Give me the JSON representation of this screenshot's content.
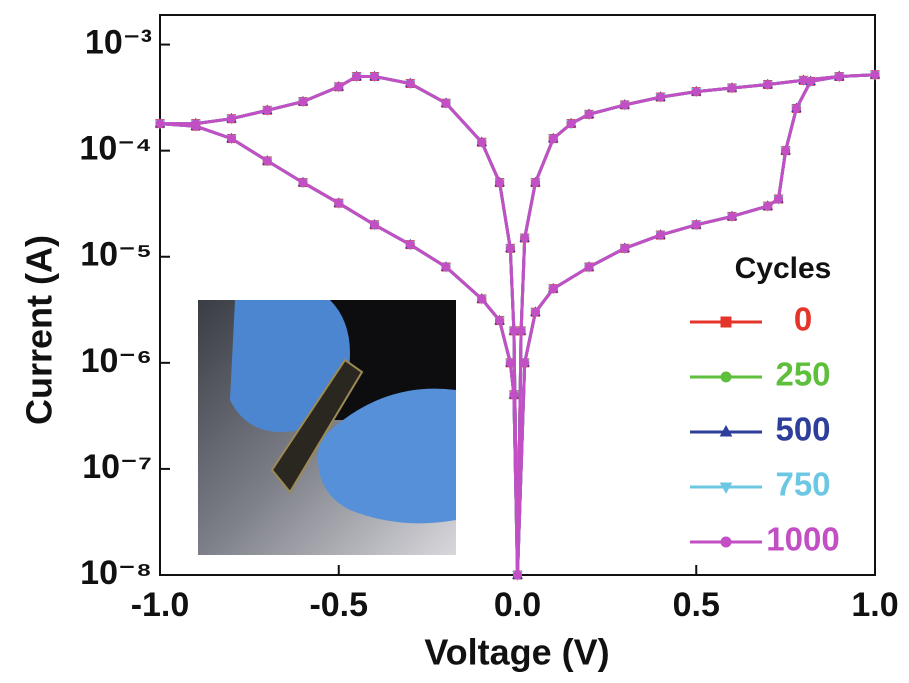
{
  "chart_data": {
    "type": "line",
    "x_label": "Voltage (V)",
    "y_label": "Current (A)",
    "xlim": [
      -1.0,
      1.0
    ],
    "xticks": [
      {
        "value": -1.0,
        "label": "-1.0"
      },
      {
        "value": -0.5,
        "label": "-0.5"
      },
      {
        "value": 0.0,
        "label": "0.0"
      },
      {
        "value": 0.5,
        "label": "0.5"
      },
      {
        "value": 1.0,
        "label": "1.0"
      }
    ],
    "ylim": [
      1e-08,
      0.0019
    ],
    "ylog": true,
    "yticks": [
      {
        "value": 0.001,
        "label": "10⁻³"
      },
      {
        "value": 0.0001,
        "label": "10⁻⁴"
      },
      {
        "value": 1e-05,
        "label": "10⁻⁵"
      },
      {
        "value": 1e-06,
        "label": "10⁻⁶"
      },
      {
        "value": 1e-07,
        "label": "10⁻⁷"
      },
      {
        "value": 1e-08,
        "label": "10⁻⁸"
      }
    ],
    "legend_title": "Cycles",
    "legend": "lower right",
    "x": [
      0,
      0.02,
      0.05,
      0.1,
      0.2,
      0.3,
      0.4,
      0.5,
      0.6,
      0.7,
      0.73,
      0.75,
      0.78,
      0.82,
      0.9,
      1.0,
      0.9,
      0.8,
      0.7,
      0.6,
      0.5,
      0.4,
      0.3,
      0.2,
      0.15,
      0.1,
      0.05,
      0.02,
      0.01,
      0,
      -0.01,
      -0.02,
      -0.05,
      -0.1,
      -0.2,
      -0.3,
      -0.4,
      -0.5,
      -0.6,
      -0.7,
      -0.8,
      -0.9,
      -1.0,
      -0.9,
      -0.8,
      -0.7,
      -0.6,
      -0.5,
      -0.45,
      -0.4,
      -0.3,
      -0.2,
      -0.1,
      -0.05,
      -0.02,
      -0.01,
      0
    ],
    "series": [
      {
        "name": "0",
        "color": "#e5352b",
        "marker": "square",
        "values": [
          1e-08,
          1e-06,
          3e-06,
          5e-06,
          8e-06,
          1.2e-05,
          1.6e-05,
          2e-05,
          2.4e-05,
          3e-05,
          3.5e-05,
          0.0001,
          0.00025,
          0.00045,
          0.0005,
          0.00052,
          0.0005,
          0.00046,
          0.00042,
          0.00039,
          0.00036,
          0.00032,
          0.00027,
          0.00022,
          0.00018,
          0.00013,
          5e-05,
          1.5e-05,
          2e-06,
          1e-08,
          5e-07,
          1e-06,
          2.5e-06,
          4e-06,
          8e-06,
          1.3e-05,
          2e-05,
          3.2e-05,
          5e-05,
          8e-05,
          0.00013,
          0.00017,
          0.00018,
          0.00018,
          0.0002,
          0.00024,
          0.00029,
          0.0004,
          0.0005,
          0.0005,
          0.00043,
          0.00028,
          0.00012,
          5e-05,
          1.2e-05,
          2e-06,
          1e-08
        ]
      },
      {
        "name": "250",
        "color": "#5dbf3b",
        "marker": "circle",
        "values": [
          1e-08,
          1e-06,
          3e-06,
          5e-06,
          8e-06,
          1.2e-05,
          1.6e-05,
          2e-05,
          2.4e-05,
          3e-05,
          3.5e-05,
          0.0001,
          0.00025,
          0.00045,
          0.0005,
          0.00052,
          0.0005,
          0.00046,
          0.00042,
          0.00039,
          0.00036,
          0.00032,
          0.00027,
          0.00022,
          0.00018,
          0.00013,
          5e-05,
          1.5e-05,
          2e-06,
          1e-08,
          5e-07,
          1e-06,
          2.5e-06,
          4e-06,
          8e-06,
          1.3e-05,
          2e-05,
          3.2e-05,
          5e-05,
          8e-05,
          0.00013,
          0.00017,
          0.00018,
          0.00018,
          0.0002,
          0.00024,
          0.00029,
          0.0004,
          0.0005,
          0.0005,
          0.00043,
          0.00028,
          0.00012,
          5e-05,
          1.2e-05,
          2e-06,
          1e-08
        ]
      },
      {
        "name": "500",
        "color": "#2d3e9b",
        "marker": "triangle",
        "values": [
          1e-08,
          1e-06,
          3e-06,
          5e-06,
          8e-06,
          1.2e-05,
          1.6e-05,
          2e-05,
          2.4e-05,
          3e-05,
          3.5e-05,
          0.0001,
          0.00025,
          0.00045,
          0.0005,
          0.00052,
          0.0005,
          0.00046,
          0.00042,
          0.00039,
          0.00036,
          0.00032,
          0.00027,
          0.00022,
          0.00018,
          0.00013,
          5e-05,
          1.5e-05,
          2e-06,
          1e-08,
          5e-07,
          1e-06,
          2.5e-06,
          4e-06,
          8e-06,
          1.3e-05,
          2e-05,
          3.2e-05,
          5e-05,
          8e-05,
          0.00013,
          0.00017,
          0.00018,
          0.00018,
          0.0002,
          0.00024,
          0.00029,
          0.0004,
          0.0005,
          0.0005,
          0.00043,
          0.00028,
          0.00012,
          5e-05,
          1.2e-05,
          2e-06,
          1e-08
        ]
      },
      {
        "name": "750",
        "color": "#6cc8e2",
        "marker": "triangle-down",
        "values": [
          1e-08,
          1e-06,
          3e-06,
          5e-06,
          8e-06,
          1.2e-05,
          1.6e-05,
          2e-05,
          2.4e-05,
          3e-05,
          3.5e-05,
          0.0001,
          0.00025,
          0.00045,
          0.0005,
          0.00052,
          0.0005,
          0.00046,
          0.00042,
          0.00039,
          0.00036,
          0.00032,
          0.00027,
          0.00022,
          0.00018,
          0.00013,
          5e-05,
          1.5e-05,
          2e-06,
          1e-08,
          5e-07,
          1e-06,
          2.5e-06,
          4e-06,
          8e-06,
          1.3e-05,
          2e-05,
          3.2e-05,
          5e-05,
          8e-05,
          0.00013,
          0.00017,
          0.00018,
          0.00018,
          0.0002,
          0.00024,
          0.00029,
          0.0004,
          0.0005,
          0.0005,
          0.00043,
          0.00028,
          0.00012,
          5e-05,
          1.2e-05,
          2e-06,
          1e-08
        ]
      },
      {
        "name": "1000",
        "color": "#c34fc5",
        "marker": "circle",
        "values": [
          1e-08,
          1e-06,
          3e-06,
          5e-06,
          8e-06,
          1.2e-05,
          1.6e-05,
          2e-05,
          2.4e-05,
          3e-05,
          3.5e-05,
          0.0001,
          0.00025,
          0.00045,
          0.0005,
          0.00052,
          0.0005,
          0.00046,
          0.00042,
          0.00039,
          0.00036,
          0.00032,
          0.00027,
          0.00022,
          0.00018,
          0.00013,
          5e-05,
          1.5e-05,
          2e-06,
          1e-08,
          5e-07,
          1e-06,
          2.5e-06,
          4e-06,
          8e-06,
          1.3e-05,
          2e-05,
          3.2e-05,
          5e-05,
          8e-05,
          0.00013,
          0.00017,
          0.00018,
          0.00018,
          0.0002,
          0.00024,
          0.00029,
          0.0004,
          0.0005,
          0.0005,
          0.00043,
          0.00028,
          0.00012,
          5e-05,
          1.2e-05,
          2e-06,
          1e-08
        ]
      }
    ]
  }
}
